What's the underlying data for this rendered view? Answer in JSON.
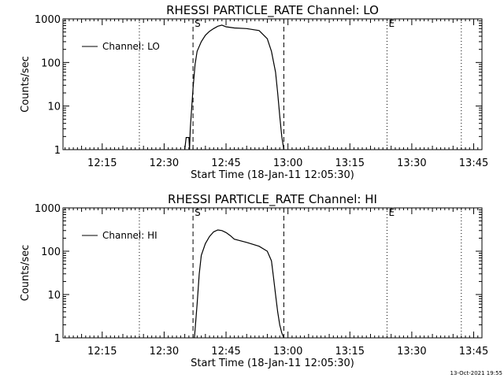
{
  "footer_stamp": "13-Oct-2021 19:55",
  "chart_data": [
    {
      "type": "line",
      "title": "RHESSI PARTICLE_RATE Channel: LO",
      "xlabel": "Start Time (18-Jan-11 12:05:30)",
      "ylabel": "Counts/sec",
      "y_scale": "log",
      "xlim": [
        "12:05:30",
        "13:47:00"
      ],
      "ylim": [
        1,
        1000
      ],
      "x_tick_labels": [
        "12:15",
        "12:30",
        "12:45",
        "13:00",
        "13:15",
        "13:30",
        "13:45"
      ],
      "y_tick_labels": [
        "1",
        "10",
        "100",
        "1000"
      ],
      "legend": {
        "position": "top-left",
        "entries": [
          "Channel: LO"
        ]
      },
      "markers": [
        {
          "label": "S",
          "time": "12:37",
          "style": "dashed"
        },
        {
          "label": "",
          "time": "12:59",
          "style": "dashed"
        },
        {
          "label": "",
          "time": "12:24",
          "style": "dotted"
        },
        {
          "label": "E",
          "time": "13:24",
          "style": "dotted"
        },
        {
          "label": "",
          "time": "13:42",
          "style": "dotted"
        }
      ],
      "series": [
        {
          "name": "Channel: LO",
          "x": [
            "12:35:00",
            "12:35:20",
            "12:36:00",
            "12:36:10",
            "12:36:20",
            "12:37:00",
            "12:37:30",
            "12:38:00",
            "12:39:00",
            "12:40:00",
            "12:41:00",
            "12:42:00",
            "12:43:00",
            "12:44:00",
            "12:45:00",
            "12:47:00",
            "12:50:00",
            "12:53:00",
            "12:55:00",
            "12:56:00",
            "12:57:00",
            "12:57:30",
            "12:58:00",
            "12:58:30",
            "12:59:00"
          ],
          "y": [
            1,
            1.9,
            1.9,
            1,
            3,
            25,
            90,
            180,
            300,
            420,
            520,
            600,
            680,
            720,
            660,
            620,
            600,
            540,
            350,
            180,
            60,
            20,
            6,
            2,
            1
          ]
        }
      ]
    },
    {
      "type": "line",
      "title": "RHESSI PARTICLE_RATE Channel: HI",
      "xlabel": "Start Time (18-Jan-11 12:05:30)",
      "ylabel": "Counts/sec",
      "y_scale": "log",
      "xlim": [
        "12:05:30",
        "13:47:00"
      ],
      "ylim": [
        1,
        1000
      ],
      "x_tick_labels": [
        "12:15",
        "12:30",
        "12:45",
        "13:00",
        "13:15",
        "13:30",
        "13:45"
      ],
      "y_tick_labels": [
        "1",
        "10",
        "100",
        "1000"
      ],
      "legend": {
        "position": "top-left",
        "entries": [
          "Channel: HI"
        ]
      },
      "markers": [
        {
          "label": "S",
          "time": "12:37",
          "style": "dashed"
        },
        {
          "label": "",
          "time": "12:59",
          "style": "dashed"
        },
        {
          "label": "",
          "time": "12:24",
          "style": "dotted"
        },
        {
          "label": "E",
          "time": "13:24",
          "style": "dotted"
        },
        {
          "label": "",
          "time": "13:42",
          "style": "dotted"
        }
      ],
      "series": [
        {
          "name": "Channel: HI",
          "x": [
            "12:37:20",
            "12:38:00",
            "12:38:30",
            "12:39:00",
            "12:40:00",
            "12:41:00",
            "12:42:00",
            "12:43:00",
            "12:44:00",
            "12:45:00",
            "12:46:00",
            "12:47:00",
            "12:50:00",
            "12:53:00",
            "12:55:00",
            "12:56:00",
            "12:56:30",
            "12:57:00",
            "12:57:30",
            "12:58:00",
            "12:58:30",
            "12:59:00"
          ],
          "y": [
            1,
            6,
            30,
            80,
            150,
            220,
            280,
            310,
            300,
            270,
            230,
            190,
            160,
            130,
            100,
            60,
            25,
            10,
            4,
            2,
            1.3,
            1
          ]
        }
      ]
    }
  ]
}
